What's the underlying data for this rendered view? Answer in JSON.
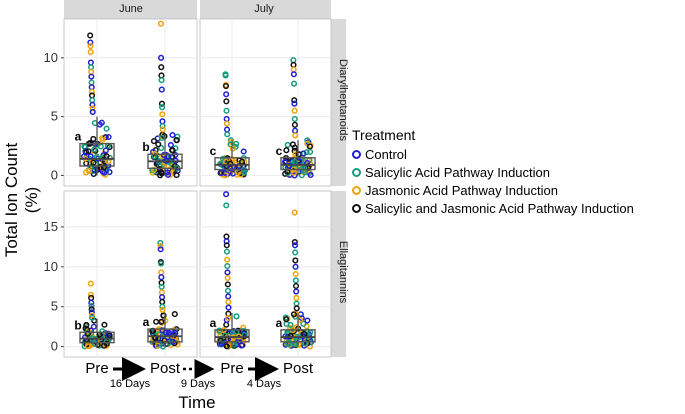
{
  "chart_data": {
    "type": "scatter",
    "subtype": "faceted boxplot with jittered points",
    "y_title_line1": "Total Ion Count",
    "y_title_line2": "(%)",
    "x_title": "Time",
    "x_categories": [
      "Pre",
      "Post"
    ],
    "schedule": {
      "arrow_days_1": "16 Days",
      "arrow_days_2": "9 Days",
      "arrow_days_3": "4 Days"
    },
    "legend": {
      "title": "Treatment",
      "entries": [
        {
          "label": "Control",
          "color": "#1f1fd6"
        },
        {
          "label": "Salicylic Acid Pathway Induction",
          "color": "#169c7f"
        },
        {
          "label": "Jasmonic Acid Pathway Induction",
          "color": "#f0a30a"
        },
        {
          "label": "Salicylic and Jasmonic Acid Pathway Induction",
          "color": "#111111"
        }
      ]
    },
    "columns": [
      "June",
      "July"
    ],
    "rows": [
      {
        "name": "Diarylheptanoids",
        "ylim": [
          -0.9,
          13.3
        ],
        "ticks": [
          0,
          5,
          10
        ],
        "tick_labels": [
          "0",
          "5",
          "10"
        ]
      },
      {
        "name": "Ellagitannins",
        "ylim": [
          -1.3,
          19.5
        ],
        "ticks": [
          0,
          5,
          10,
          15
        ],
        "tick_labels": [
          "0",
          "5",
          "10",
          "15"
        ]
      }
    ],
    "panels": [
      {
        "row": 0,
        "col": 0,
        "letters": [
          "a",
          "b"
        ],
        "boxes": [
          {
            "category": "Pre",
            "q1": 0.8,
            "median": 1.4,
            "q3": 2.7,
            "whisker_low": 0.0,
            "whisker_high": 5.0
          },
          {
            "category": "Post",
            "q1": 0.6,
            "median": 1.2,
            "q3": 1.8,
            "whisker_low": 0.0,
            "whisker_high": 3.5
          }
        ],
        "outliers": [
          {
            "category": "Pre",
            "y": 11.9,
            "t": 3
          },
          {
            "category": "Pre",
            "y": 11.3,
            "t": 0
          },
          {
            "category": "Pre",
            "y": 11.0,
            "t": 2
          },
          {
            "category": "Pre",
            "y": 10.5,
            "t": 2
          },
          {
            "category": "Pre",
            "y": 9.6,
            "t": 0
          },
          {
            "category": "Pre",
            "y": 9.2,
            "t": 1
          },
          {
            "category": "Pre",
            "y": 8.8,
            "t": 2
          },
          {
            "category": "Pre",
            "y": 8.4,
            "t": 0
          },
          {
            "category": "Pre",
            "y": 7.9,
            "t": 1
          },
          {
            "category": "Pre",
            "y": 7.5,
            "t": 0
          },
          {
            "category": "Pre",
            "y": 7.1,
            "t": 2
          },
          {
            "category": "Pre",
            "y": 6.8,
            "t": 3
          },
          {
            "category": "Pre",
            "y": 6.4,
            "t": 1
          },
          {
            "category": "Pre",
            "y": 6.0,
            "t": 0
          },
          {
            "category": "Pre",
            "y": 5.7,
            "t": 2
          },
          {
            "category": "Pre",
            "y": 5.4,
            "t": 0
          },
          {
            "category": "Post",
            "y": 12.9,
            "t": 2
          },
          {
            "category": "Post",
            "y": 10.0,
            "t": 0
          },
          {
            "category": "Post",
            "y": 9.2,
            "t": 3
          },
          {
            "category": "Post",
            "y": 8.5,
            "t": 3
          },
          {
            "category": "Post",
            "y": 8.1,
            "t": 1
          },
          {
            "category": "Post",
            "y": 7.3,
            "t": 0
          },
          {
            "category": "Post",
            "y": 6.1,
            "t": 3
          },
          {
            "category": "Post",
            "y": 5.8,
            "t": 1
          },
          {
            "category": "Post",
            "y": 5.2,
            "t": 2
          },
          {
            "category": "Post",
            "y": 4.6,
            "t": 0
          },
          {
            "category": "Post",
            "y": 4.2,
            "t": 1
          },
          {
            "category": "Post",
            "y": 3.9,
            "t": 2
          }
        ]
      },
      {
        "row": 0,
        "col": 1,
        "letters": [
          "c",
          "c"
        ],
        "boxes": [
          {
            "category": "Pre",
            "q1": 0.5,
            "median": 0.9,
            "q3": 1.5,
            "whisker_low": 0.0,
            "whisker_high": 3.0
          },
          {
            "category": "Post",
            "q1": 0.5,
            "median": 0.9,
            "q3": 1.5,
            "whisker_low": 0.0,
            "whisker_high": 3.0
          }
        ],
        "outliers": [
          {
            "category": "Pre",
            "y": 8.6,
            "t": 1
          },
          {
            "category": "Pre",
            "y": 8.5,
            "t": 1
          },
          {
            "category": "Pre",
            "y": 7.7,
            "t": 2
          },
          {
            "category": "Pre",
            "y": 7.6,
            "t": 3
          },
          {
            "category": "Pre",
            "y": 6.9,
            "t": 0
          },
          {
            "category": "Pre",
            "y": 6.3,
            "t": 3
          },
          {
            "category": "Pre",
            "y": 5.5,
            "t": 1
          },
          {
            "category": "Pre",
            "y": 4.8,
            "t": 0
          },
          {
            "category": "Pre",
            "y": 4.4,
            "t": 2
          },
          {
            "category": "Pre",
            "y": 3.9,
            "t": 0
          },
          {
            "category": "Pre",
            "y": 3.5,
            "t": 1
          },
          {
            "category": "Post",
            "y": 9.8,
            "t": 1
          },
          {
            "category": "Post",
            "y": 9.4,
            "t": 3
          },
          {
            "category": "Post",
            "y": 9.0,
            "t": 2
          },
          {
            "category": "Post",
            "y": 8.6,
            "t": 0
          },
          {
            "category": "Post",
            "y": 7.8,
            "t": 1
          },
          {
            "category": "Post",
            "y": 6.4,
            "t": 3
          },
          {
            "category": "Post",
            "y": 6.1,
            "t": 0
          },
          {
            "category": "Post",
            "y": 5.5,
            "t": 2
          },
          {
            "category": "Post",
            "y": 4.8,
            "t": 1
          },
          {
            "category": "Post",
            "y": 4.3,
            "t": 3
          },
          {
            "category": "Post",
            "y": 3.8,
            "t": 0
          },
          {
            "category": "Post",
            "y": 3.4,
            "t": 2
          }
        ]
      },
      {
        "row": 1,
        "col": 0,
        "letters": [
          "b",
          "a"
        ],
        "boxes": [
          {
            "category": "Pre",
            "q1": 0.5,
            "median": 1.0,
            "q3": 1.8,
            "whisker_low": 0.0,
            "whisker_high": 3.5
          },
          {
            "category": "Post",
            "q1": 0.6,
            "median": 1.3,
            "q3": 2.2,
            "whisker_low": 0.0,
            "whisker_high": 4.2
          }
        ],
        "outliers": [
          {
            "category": "Pre",
            "y": 7.9,
            "t": 2
          },
          {
            "category": "Pre",
            "y": 6.5,
            "t": 2
          },
          {
            "category": "Pre",
            "y": 6.1,
            "t": 3
          },
          {
            "category": "Pre",
            "y": 5.5,
            "t": 0
          },
          {
            "category": "Pre",
            "y": 5.1,
            "t": 1
          },
          {
            "category": "Pre",
            "y": 4.7,
            "t": 3
          },
          {
            "category": "Pre",
            "y": 4.3,
            "t": 0
          },
          {
            "category": "Pre",
            "y": 3.9,
            "t": 2
          },
          {
            "category": "Pre",
            "y": 3.6,
            "t": 1
          },
          {
            "category": "Post",
            "y": 13.0,
            "t": 1
          },
          {
            "category": "Post",
            "y": 12.6,
            "t": 2
          },
          {
            "category": "Post",
            "y": 12.2,
            "t": 0
          },
          {
            "category": "Post",
            "y": 10.6,
            "t": 3
          },
          {
            "category": "Post",
            "y": 10.4,
            "t": 1
          },
          {
            "category": "Post",
            "y": 9.3,
            "t": 2
          },
          {
            "category": "Post",
            "y": 8.7,
            "t": 0
          },
          {
            "category": "Post",
            "y": 8.0,
            "t": 3
          },
          {
            "category": "Post",
            "y": 7.5,
            "t": 1
          },
          {
            "category": "Post",
            "y": 6.8,
            "t": 2
          },
          {
            "category": "Post",
            "y": 6.2,
            "t": 0
          },
          {
            "category": "Post",
            "y": 5.6,
            "t": 3
          },
          {
            "category": "Post",
            "y": 5.0,
            "t": 1
          },
          {
            "category": "Post",
            "y": 4.6,
            "t": 2
          }
        ]
      },
      {
        "row": 1,
        "col": 1,
        "letters": [
          "a",
          "a"
        ],
        "boxes": [
          {
            "category": "Pre",
            "q1": 0.6,
            "median": 1.2,
            "q3": 2.1,
            "whisker_low": 0.0,
            "whisker_high": 4.2
          },
          {
            "category": "Post",
            "q1": 0.6,
            "median": 1.2,
            "q3": 2.1,
            "whisker_low": 0.0,
            "whisker_high": 4.2
          }
        ],
        "outliers": [
          {
            "category": "Pre",
            "y": 19.1,
            "t": 0
          },
          {
            "category": "Pre",
            "y": 17.7,
            "t": 1
          },
          {
            "category": "Pre",
            "y": 13.8,
            "t": 3
          },
          {
            "category": "Pre",
            "y": 13.2,
            "t": 0
          },
          {
            "category": "Pre",
            "y": 12.7,
            "t": 3
          },
          {
            "category": "Pre",
            "y": 11.9,
            "t": 1
          },
          {
            "category": "Pre",
            "y": 10.9,
            "t": 2
          },
          {
            "category": "Pre",
            "y": 10.1,
            "t": 1
          },
          {
            "category": "Pre",
            "y": 9.3,
            "t": 0
          },
          {
            "category": "Pre",
            "y": 8.6,
            "t": 2
          },
          {
            "category": "Pre",
            "y": 7.8,
            "t": 3
          },
          {
            "category": "Pre",
            "y": 7.0,
            "t": 1
          },
          {
            "category": "Pre",
            "y": 6.3,
            "t": 0
          },
          {
            "category": "Pre",
            "y": 5.6,
            "t": 2
          },
          {
            "category": "Pre",
            "y": 4.9,
            "t": 0
          },
          {
            "category": "Post",
            "y": 16.8,
            "t": 2
          },
          {
            "category": "Post",
            "y": 13.1,
            "t": 3
          },
          {
            "category": "Post",
            "y": 12.7,
            "t": 0
          },
          {
            "category": "Post",
            "y": 11.8,
            "t": 1
          },
          {
            "category": "Post",
            "y": 10.8,
            "t": 3
          },
          {
            "category": "Post",
            "y": 10.0,
            "t": 0
          },
          {
            "category": "Post",
            "y": 9.1,
            "t": 2
          },
          {
            "category": "Post",
            "y": 8.3,
            "t": 1
          },
          {
            "category": "Post",
            "y": 7.6,
            "t": 3
          },
          {
            "category": "Post",
            "y": 6.9,
            "t": 0
          },
          {
            "category": "Post",
            "y": 6.1,
            "t": 2
          },
          {
            "category": "Post",
            "y": 5.4,
            "t": 1
          },
          {
            "category": "Post",
            "y": 4.8,
            "t": 3
          }
        ]
      }
    ]
  }
}
